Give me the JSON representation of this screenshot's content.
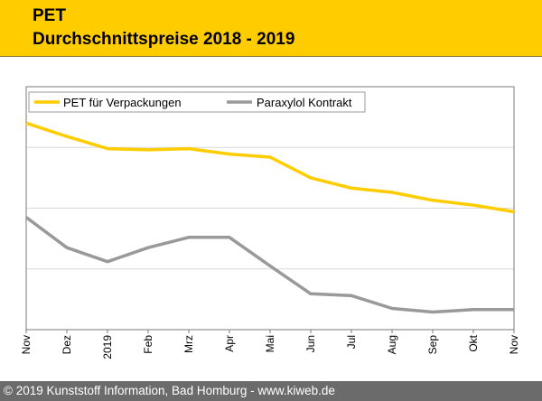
{
  "header": {
    "title": "PET",
    "subtitle": "Durchschnittspreise 2018 - 2019"
  },
  "footer": {
    "text": "© 2019 Kunststoff Information, Bad Homburg - www.kiweb.de"
  },
  "colors": {
    "accent": "#ffcc00",
    "series1": "#ffcc00",
    "series2": "#999999",
    "footer": "#6b6b6b"
  },
  "chart_data": {
    "type": "line",
    "title": "Durchschnittspreise 2018 - 2019",
    "xlabel": "",
    "ylabel": "",
    "categories": [
      "Nov",
      "Dez",
      "2019",
      "Feb",
      "Mrz",
      "Apr",
      "Mai",
      "Jun",
      "Jul",
      "Aug",
      "Sep",
      "Okt",
      "Nov"
    ],
    "ylim": [
      0,
      4
    ],
    "grid": true,
    "legend": "top-left",
    "series": [
      {
        "name": "PET für Verpackungen",
        "color": "#ffcc00",
        "values": [
          3.4,
          3.18,
          2.98,
          2.96,
          2.98,
          2.89,
          2.84,
          2.5,
          2.33,
          2.26,
          2.13,
          2.05,
          1.94
        ]
      },
      {
        "name": "Paraxylol Kontrakt",
        "color": "#999999",
        "values": [
          1.85,
          1.35,
          1.12,
          1.35,
          1.52,
          1.52,
          1.05,
          0.59,
          0.56,
          0.35,
          0.29,
          0.33,
          0.33
        ]
      }
    ]
  }
}
